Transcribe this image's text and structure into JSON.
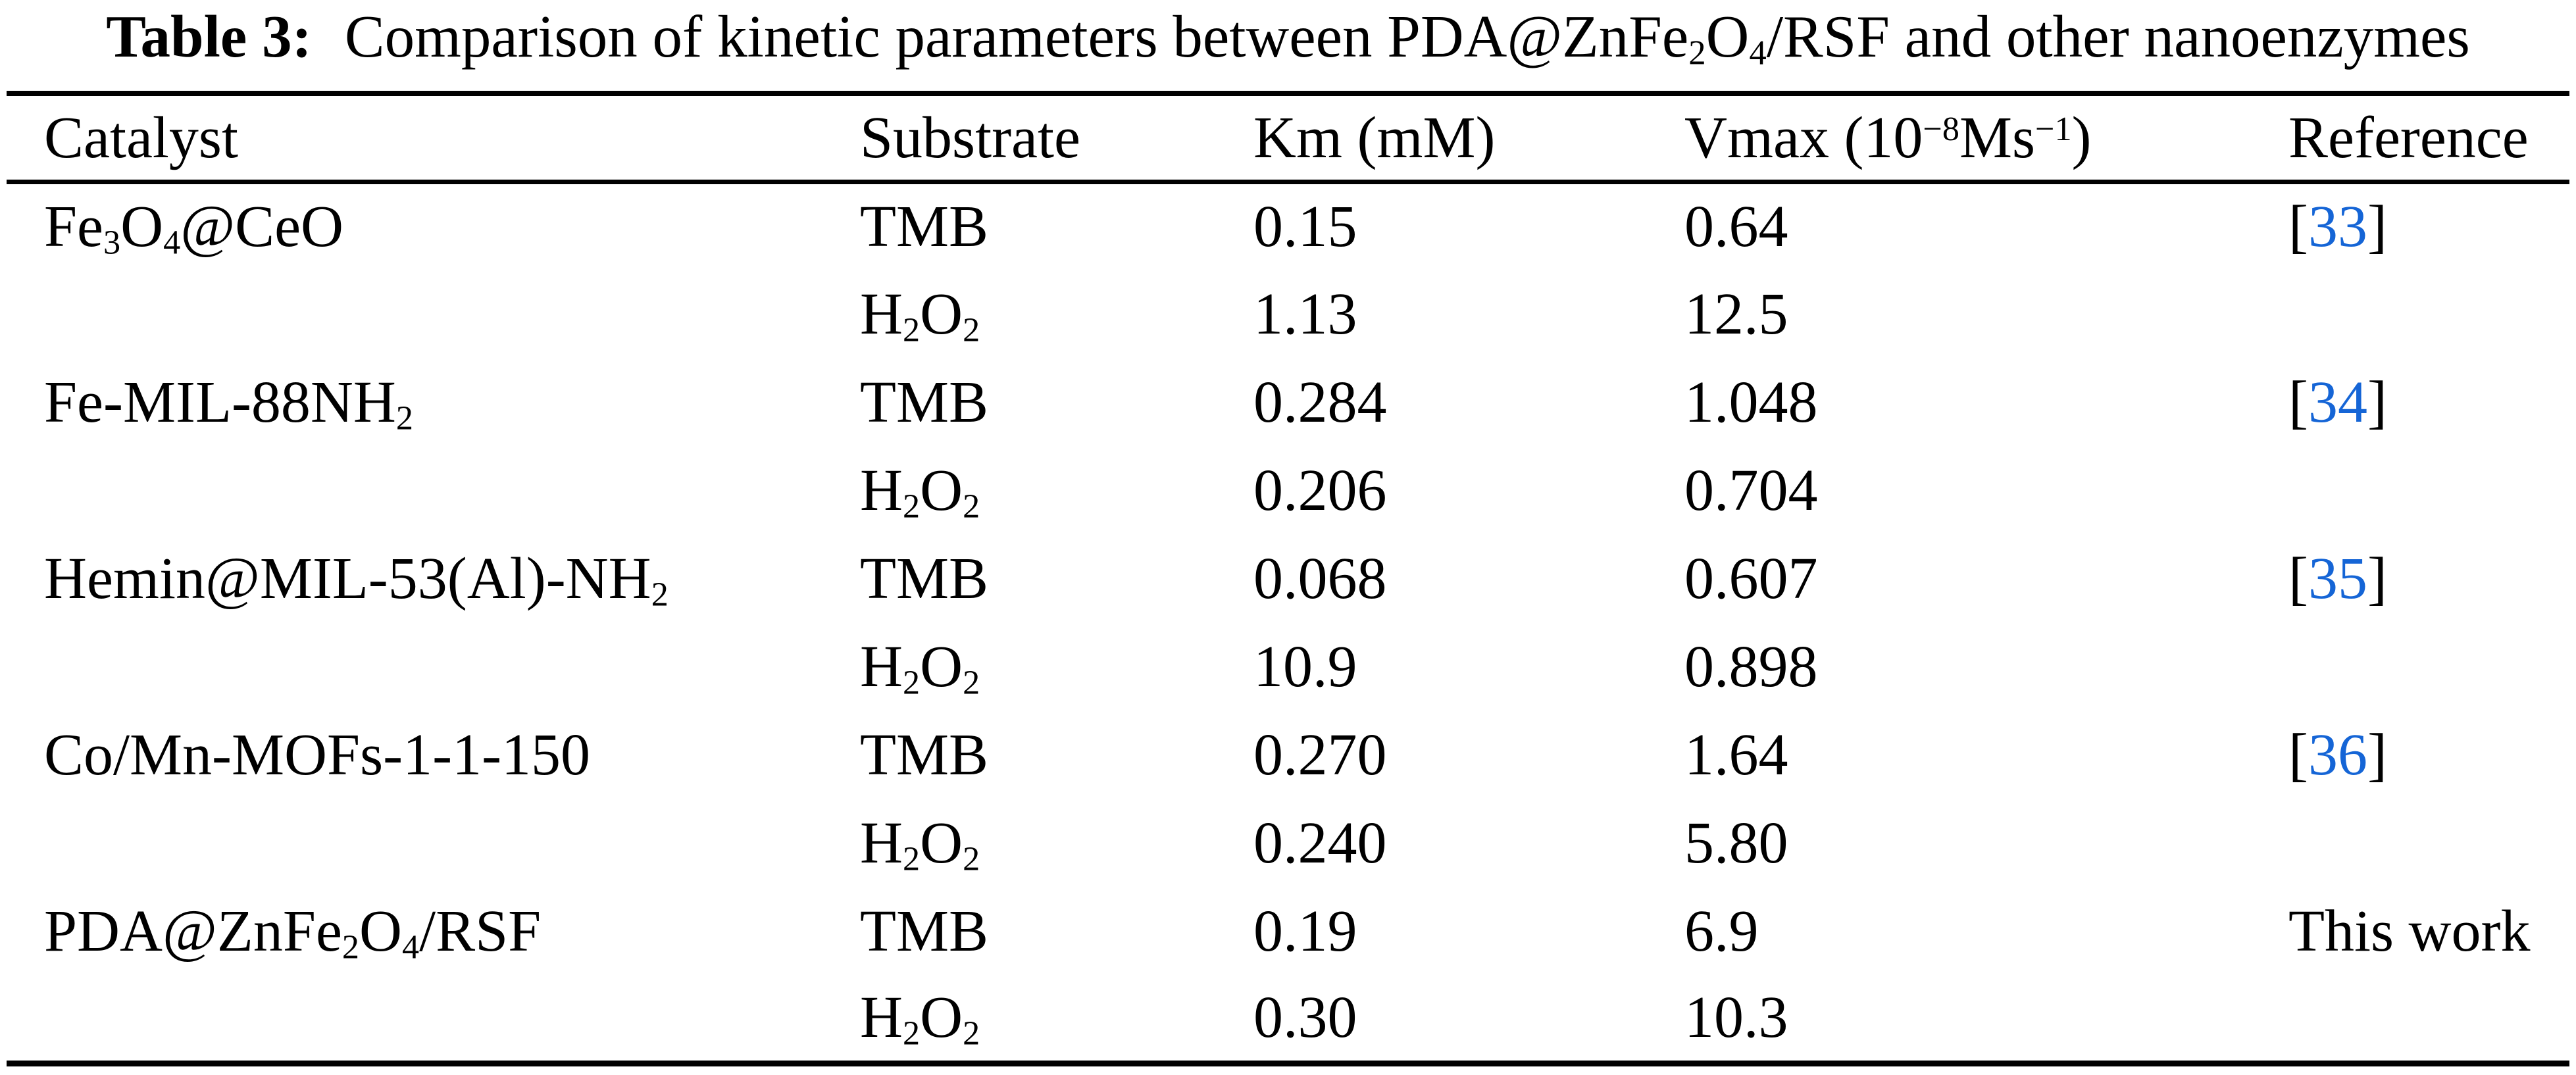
{
  "page": {
    "background": "#ffffff",
    "text_color": "#000000",
    "rule_color": "#000000",
    "link_color": "#1565d6"
  },
  "caption": {
    "label": "Table 3:",
    "text": "Comparison of kinetic parameters between PDA@ZnFe_{2}O_{4}/RSF and other nanoenzymes"
  },
  "table": {
    "columns": [
      {
        "key": "catalyst",
        "label": "Catalyst"
      },
      {
        "key": "substrate",
        "label": "Substrate"
      },
      {
        "key": "km",
        "label": "Km (mM)"
      },
      {
        "key": "vmax",
        "label": "Vmax (10^{−8}Ms^{−1})"
      },
      {
        "key": "reference",
        "label": "Reference"
      }
    ],
    "rows": [
      {
        "catalyst": "Fe_{3}O_{4}@CeO",
        "substrate": "TMB",
        "km": "0.15",
        "vmax": "0.64",
        "reference": {
          "type": "citation",
          "number": "33"
        }
      },
      {
        "catalyst": "",
        "substrate": "H_{2}O_{2}",
        "km": "1.13",
        "vmax": "12.5",
        "reference": null
      },
      {
        "catalyst": "Fe-MIL-88NH_{2}",
        "substrate": "TMB",
        "km": "0.284",
        "vmax": "1.048",
        "reference": {
          "type": "citation",
          "number": "34"
        }
      },
      {
        "catalyst": "",
        "substrate": "H_{2}O_{2}",
        "km": "0.206",
        "vmax": "0.704",
        "reference": null
      },
      {
        "catalyst": "Hemin@MIL-53(Al)-NH_{2}",
        "substrate": "TMB",
        "km": "0.068",
        "vmax": "0.607",
        "reference": {
          "type": "citation",
          "number": "35"
        }
      },
      {
        "catalyst": "",
        "substrate": "H_{2}O_{2}",
        "km": "10.9",
        "vmax": "0.898",
        "reference": null
      },
      {
        "catalyst": "Co/Mn-MOFs-1-1-150",
        "substrate": "TMB",
        "km": "0.270",
        "vmax": "1.64",
        "reference": {
          "type": "citation",
          "number": "36"
        }
      },
      {
        "catalyst": "",
        "substrate": "H_{2}O_{2}",
        "km": "0.240",
        "vmax": "5.80",
        "reference": null
      },
      {
        "catalyst": "PDA@ZnFe_{2}O_{4}/RSF",
        "substrate": "TMB",
        "km": "0.19",
        "vmax": "6.9",
        "reference": {
          "type": "text",
          "text": "This work"
        }
      },
      {
        "catalyst": "",
        "substrate": "H_{2}O_{2}",
        "km": "0.30",
        "vmax": "10.3",
        "reference": null
      }
    ]
  }
}
